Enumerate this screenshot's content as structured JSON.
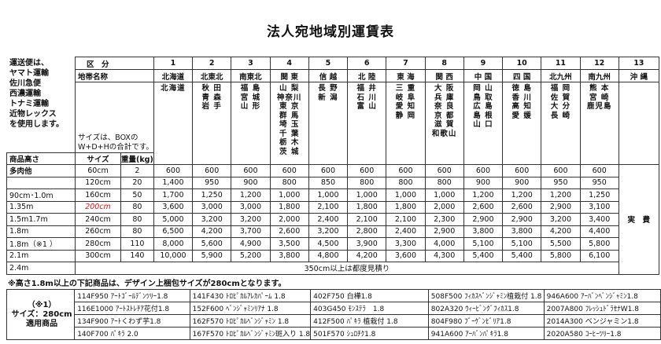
{
  "title": "法人宛地域別運賃表",
  "notes": "運送便は、\nヤマト運輸\n佐川急便\n西濃運輸\nトナミ運輸\n近物レックス\nを使用します。",
  "header": {
    "kubun": "区　分",
    "zone_name": "地帯名称",
    "size_note": "サイズは、BOXの\nW+D+Hの合計です。",
    "height_label": "商品高さ",
    "size_label": "サイズ",
    "weight_label": "重量(kg)"
  },
  "zones": [
    {
      "no": "1",
      "name": "北海道",
      "prefs": "北海道"
    },
    {
      "no": "2",
      "name": "北東北",
      "prefs": "秋 田\n青 森\n岩 手"
    },
    {
      "no": "3",
      "name": "南東北",
      "prefs": "福 島\n宮 城\n山 形"
    },
    {
      "no": "4",
      "name": "関 東",
      "prefs": "山 梨\n神奈川\n東 京\n群 馬\n埼 玉\n千 葉\n栃 木\n茨 城"
    },
    {
      "no": "5",
      "name": "信 越",
      "prefs": "長 野\n新 潟"
    },
    {
      "no": "6",
      "name": "北 陸",
      "prefs": "福 井\n石 川\n富 山"
    },
    {
      "no": "7",
      "name": "東 海",
      "prefs": "三 重\n岐 阜\n愛 知\n静 岡"
    },
    {
      "no": "8",
      "name": "関 西",
      "prefs": "大 阪\n兵 庫\n奈 良\n京 都\n滋 賀\n和歌山"
    },
    {
      "no": "9",
      "name": "中 国",
      "prefs": "岡 山\n鳥 取\n広 島\n島 根\n山 口"
    },
    {
      "no": "10",
      "name": "四 国",
      "prefs": "徳 島\n香 川\n高 知\n愛 媛"
    },
    {
      "no": "11",
      "name": "北九州",
      "prefs": "福 岡\n佐 賀\n大 分\n長 崎"
    },
    {
      "no": "12",
      "name": "南九州",
      "prefs": "熊 本\n宮 崎\n鹿児島"
    },
    {
      "no": "13",
      "name": "沖 縄",
      "prefs": ""
    }
  ],
  "rows": [
    {
      "height": "多肉他",
      "size": "60cm",
      "weight": "2",
      "prices": [
        "600",
        "600",
        "600",
        "600",
        "600",
        "600",
        "600",
        "600",
        "600",
        "600",
        "600",
        "600"
      ]
    },
    {
      "height": "",
      "size": "120cm",
      "weight": "20",
      "prices": [
        "1,400",
        "950",
        "900",
        "800",
        "850",
        "800",
        "800",
        "800",
        "900",
        "900",
        "950",
        "950"
      ]
    },
    {
      "height": "90cm･1.0m",
      "size": "160cm",
      "weight": "50",
      "prices": [
        "1,700",
        "1,250",
        "1,200",
        "1,000",
        "1,000",
        "1,000",
        "1,000",
        "1,000",
        "1,200",
        "1,200",
        "1,200",
        "1,250"
      ]
    },
    {
      "height": "1.35m",
      "size": "200cm",
      "weight": "80",
      "prices": [
        "3,600",
        "3,000",
        "3,000",
        "1,800",
        "2,100",
        "1,800",
        "1,800",
        "2,000",
        "2,600",
        "2,600",
        "2,900",
        "3,100"
      ]
    },
    {
      "height": "1.5m1.7m",
      "size": "240cm",
      "weight": "80",
      "prices": [
        "5,000",
        "3,200",
        "3,200",
        "2,000",
        "2,400",
        "2,100",
        "2,100",
        "2,300",
        "2,900",
        "2,900",
        "3,200",
        "3,400"
      ]
    },
    {
      "height": "1.8m",
      "size": "260cm",
      "weight": "80",
      "prices": [
        "6,500",
        "4,200",
        "3,700",
        "2,600",
        "3,200",
        "2,800",
        "2,400",
        "2,900",
        "3,800",
        "3,800",
        "4,200",
        "4,400"
      ]
    },
    {
      "height": "1.8m（※1 ）",
      "size": "280cm",
      "weight": "110",
      "prices": [
        "8,000",
        "5,600",
        "4,900",
        "3,500",
        "4,500",
        "3,900",
        "3,300",
        "4,000",
        "5,100",
        "5,100",
        "5,500",
        "5,800"
      ]
    },
    {
      "height": "2.1m",
      "size": "300cm",
      "weight": "140",
      "prices": [
        "10,000",
        "5,900",
        "5,200",
        "3,800",
        "4,800",
        "4,200",
        "3,600",
        "4,300",
        "5,400",
        "5,400",
        "5,800",
        "6,100"
      ]
    }
  ],
  "last_row": {
    "height": "2.4m",
    "note": "350cm以上は都度見積り"
  },
  "okinawa_price": "実　費",
  "highlight_color": "#e01010",
  "footnote": "※高さ1.8m以上の下記商品は、デザイン上梱包サイズが280cmとなります。",
  "products_label": "（※1）\nサイズ：280cm\n適用商品",
  "products": [
    [
      "114F950 ｱｰﾄｺﾞｰﾙﾃﾞﾝﾂﾘｰ1.8",
      "141F430 ﾄﾛﾋﾟｶﾙｱﾚｶﾊﾟｰﾑ 1.8",
      "402F750 白樺1.8",
      "508F500 ﾌｨｶｽﾍﾞﾝｼﾞｬﾐﾝ植栽付 1.8",
      "946A600 ｱｰﾊﾞﾝﾍﾞﾝｼﾞｬﾐﾝ1.8"
    ],
    [
      "116E1000 ｱｰﾄｽﾄﾚﾁｱ花付1.8",
      "152F600 ﾍﾞﾝｼﾞｬﾐﾝﾘｱﾅ 1.8",
      "403G450 ﾓﾝｽﾃﾗ　1.8",
      "802A320 ｳｨｰﾋﾞﾝｸﾞﾌｨｶｽ1.8",
      "2007A800 ﾌﾚｯｼｭﾄﾞﾗｾﾅW1.8"
    ],
    [
      "134F900 ｱｰﾄくわず芋1.8",
      "162F570 ﾄﾛﾋﾟｶﾙﾍﾞﾝｼﾞｬﾐﾝ 1.8",
      "412F500 ﾊﾟｷﾗ 植栽付 1.8",
      "804F980 ﾌﾞｰｹﾞﾝﾋﾞﾘｱ1.8",
      "2014A300 ベンジャミン1.8"
    ],
    [
      "140F700 ﾊﾟｷﾗ 2.0",
      "167F570 ﾄﾛﾋﾟｶﾙﾍﾞﾝｼﾞｬﾐﾝ斑入り 1.8",
      "501F570 ｼｭﾛﾁｸ1.8",
      "941A600 ｱｰﾊﾞﾝﾊﾟｷﾗ1.8",
      "2020A580 ｺｰﾋｰﾂﾘｰ1.8"
    ]
  ]
}
